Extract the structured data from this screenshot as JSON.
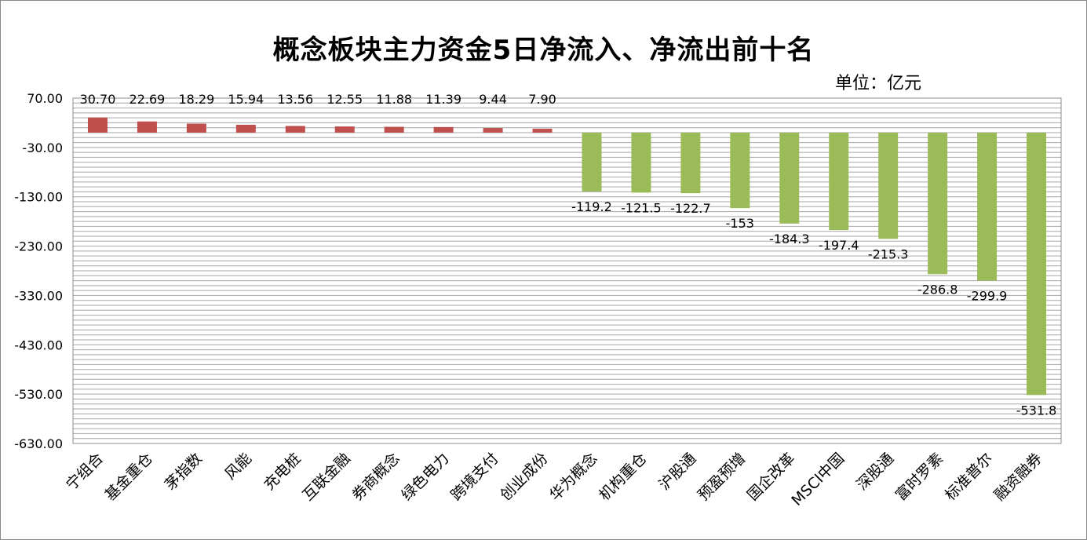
{
  "chart_data": {
    "type": "bar",
    "title": "概念板块主力资金5日净流入、净流出前十名",
    "unit": "单位：亿元",
    "categories": [
      "宁组合",
      "基金重仓",
      "茅指数",
      "风能",
      "充电桩",
      "互联金融",
      "券商概念",
      "绿色电力",
      "跨境支付",
      "创业成份",
      "华为概念",
      "机构重仓",
      "沪股通",
      "预盈预增",
      "国企改革",
      "MSCI中国",
      "深股通",
      "富时罗素",
      "标准普尔",
      "融资融券"
    ],
    "values": [
      30.7,
      22.69,
      18.29,
      15.94,
      13.56,
      12.55,
      11.88,
      11.39,
      9.44,
      7.9,
      -119.2,
      -121.5,
      -122.7,
      -153,
      -184.3,
      -197.4,
      -215.3,
      -286.8,
      -299.9,
      -531.8
    ],
    "value_labels": [
      "30.70",
      "22.69",
      "18.29",
      "15.94",
      "13.56",
      "12.55",
      "11.88",
      "11.39",
      "9.44",
      "7.90",
      "-119.2",
      "-121.5",
      "-122.7",
      "-153",
      "-184.3",
      "-197.4",
      "-215.3",
      "-286.8",
      "-299.9",
      "-531.8"
    ],
    "y_ticks": [
      "70.00",
      "-30.00",
      "-130.00",
      "-230.00",
      "-330.00",
      "-430.00",
      "-530.00",
      "-630.00"
    ],
    "ylim": [
      -630,
      70
    ],
    "grid": true,
    "legend": "none",
    "colors": {
      "positive": "#c0504d",
      "negative": "#9bbb59",
      "grid": "#a6a6a6"
    }
  }
}
